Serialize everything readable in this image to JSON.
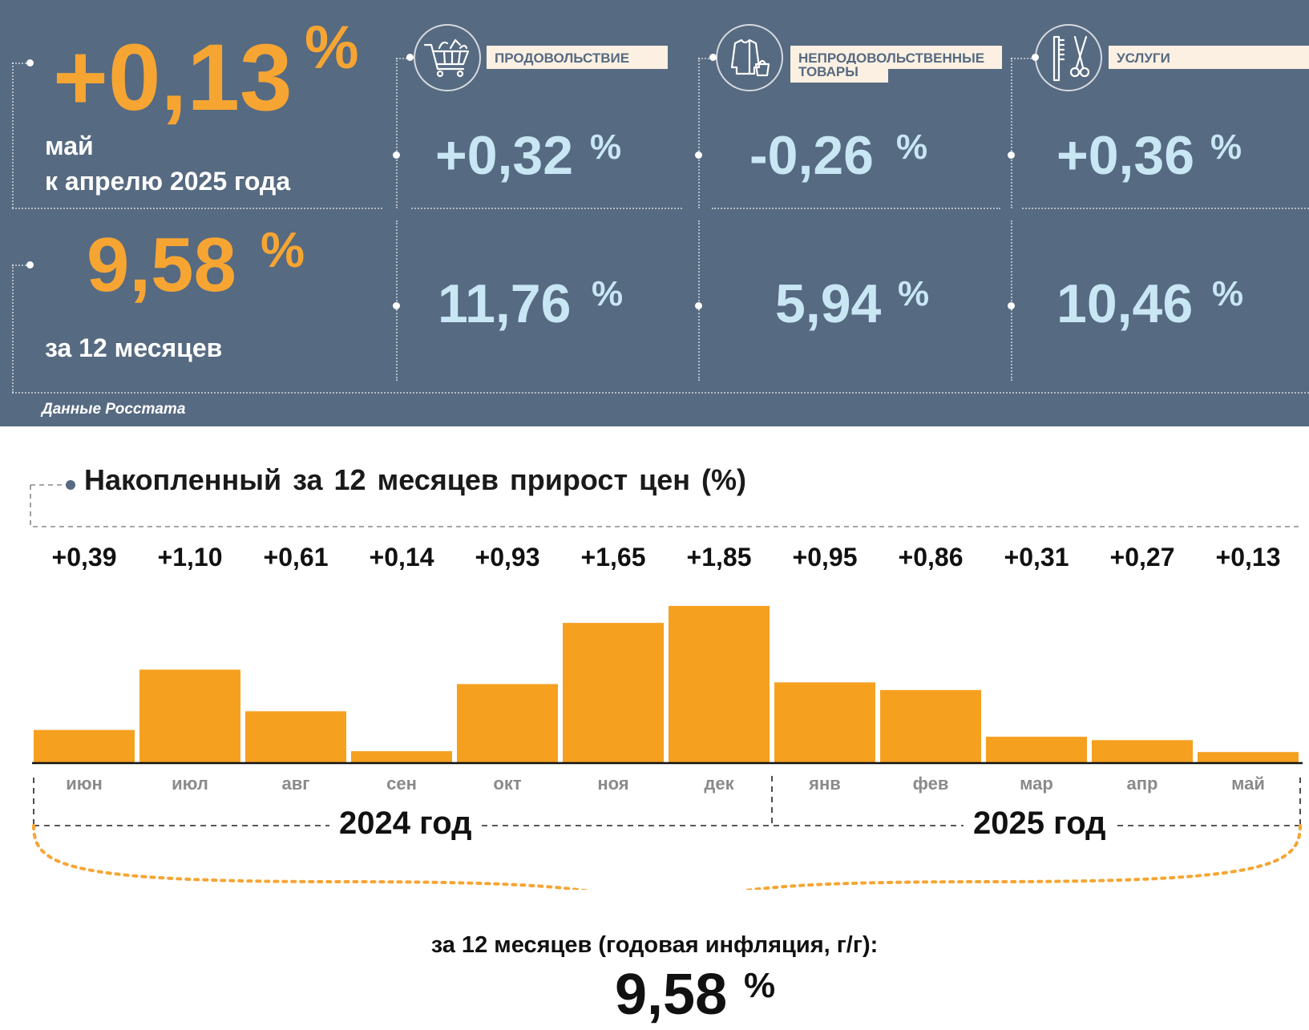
{
  "summary": {
    "monthly": {
      "value": "+0,13",
      "unit": "%",
      "line1": "май",
      "line2": "к апрелю 2025 года"
    },
    "annual": {
      "value": "9,58",
      "unit": "%",
      "label": "за 12 месяцев"
    },
    "categories": [
      {
        "label_line1": "ПРОДОВОЛЬСТВИЕ",
        "label_line2": "",
        "icon": "shopping-cart-icon",
        "monthly": "+0,32",
        "annual": "11,76",
        "unit": "%"
      },
      {
        "label_line1": "НЕПРОДОВОЛЬСТВЕННЫЕ",
        "label_line2": "ТОВАРЫ",
        "icon": "clothing-icon",
        "monthly": "-0,26",
        "annual": "5,94",
        "unit": "%"
      },
      {
        "label_line1": "УСЛУГИ",
        "label_line2": "",
        "icon": "comb-scissors-icon",
        "monthly": "+0,36",
        "annual": "10,46",
        "unit": "%"
      }
    ],
    "source": "Данные Росстата"
  },
  "chart_title": "Накопленный за 12 месяцев прирост цен (%)",
  "chart_data": {
    "type": "bar",
    "title": "Накопленный за 12 месяцев прирост цен (%)",
    "categories": [
      "июн",
      "июл",
      "авг",
      "сен",
      "окт",
      "ноя",
      "дек",
      "янв",
      "фев",
      "мар",
      "апр",
      "май"
    ],
    "values": [
      0.39,
      1.1,
      0.61,
      0.14,
      0.93,
      1.65,
      1.85,
      0.95,
      0.86,
      0.31,
      0.27,
      0.13
    ],
    "value_labels": [
      "+0,39",
      "+1,10",
      "+0,61",
      "+0,14",
      "+0,93",
      "+1,65",
      "+1,85",
      "+0,95",
      "+0,86",
      "+0,31",
      "+0,27",
      "+0,13"
    ],
    "year_groups": [
      {
        "label": "2024 год",
        "months": 7
      },
      {
        "label": "2025 год",
        "months": 5
      }
    ],
    "ylim": [
      0,
      2
    ],
    "grid": false,
    "bar_color": "#f6a020"
  },
  "annual_caption": "за 12 месяцев (годовая инфляция, г/г):",
  "annual_value": "9,58",
  "annual_unit": "%"
}
